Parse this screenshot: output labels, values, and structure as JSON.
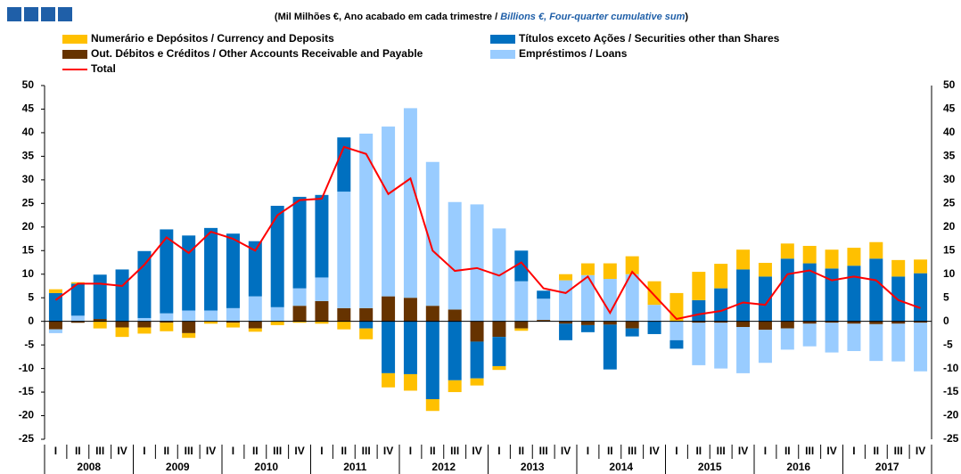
{
  "chart_data": {
    "type": "bar",
    "stacked": true,
    "subtitle_parts": [
      "(Mil Milhões €, Ano acabado em cada trimestre  / ",
      "Billions €, Four-quarter cumulative sum",
      ")"
    ],
    "categories": [
      "I",
      "II",
      "III",
      "IV",
      "I",
      "II",
      "III",
      "IV",
      "I",
      "II",
      "III",
      "IV",
      "I",
      "II",
      "III",
      "IV",
      "I",
      "II",
      "III",
      "IV",
      "I",
      "II",
      "III",
      "IV",
      "I",
      "II",
      "III",
      "IV",
      "I",
      "II",
      "III",
      "IV",
      "I",
      "II",
      "III",
      "IV",
      "I",
      "II",
      "III",
      "IV"
    ],
    "years": [
      "2008",
      "2009",
      "2010",
      "2011",
      "2012",
      "2013",
      "2014",
      "2015",
      "2016",
      "2017"
    ],
    "ylim": [
      -25,
      50
    ],
    "yticks": [
      -25,
      -20,
      -15,
      -10,
      -5,
      0,
      5,
      10,
      15,
      20,
      25,
      30,
      35,
      40,
      45,
      50
    ],
    "series": [
      {
        "name": "Out. Débitos e Créditos / Other Accounts Receivable and Payable",
        "color": "#663300",
        "type": "bar",
        "values": [
          -1.7,
          -0.3,
          0.5,
          -1.3,
          -1.3,
          -0.3,
          -2.5,
          0,
          -0.3,
          -1.5,
          0,
          3.3,
          4.3,
          2.8,
          2.8,
          5.3,
          5,
          3.3,
          2.5,
          -4.3,
          -3.3,
          -1.5,
          0.3,
          -0.5,
          -0.8,
          -0.7,
          -1.5,
          0,
          0,
          -0.3,
          -0.3,
          -1.2,
          -1.8,
          -1.5,
          -0.5,
          -0.3,
          -0.5,
          -0.6,
          -0.5,
          -0.3
        ]
      },
      {
        "name": "Empréstimos / Loans",
        "color": "#99ccff",
        "type": "bar",
        "values": [
          -0.8,
          1.2,
          0,
          0,
          0.7,
          1.7,
          2.3,
          2.3,
          2.8,
          5.3,
          3,
          3.7,
          5,
          24.7,
          37,
          36,
          40.2,
          30.5,
          22.8,
          24.8,
          19.7,
          8.5,
          4.5,
          8.7,
          9.8,
          9,
          10,
          3.5,
          -4,
          -9,
          -9.7,
          -9.8,
          -7,
          -4.5,
          -4.8,
          -6.3,
          -5.8,
          -7.8,
          -8,
          -10.3
        ]
      },
      {
        "name": "Títulos exceto Ações / Securities other than Shares",
        "color": "#0070c0",
        "type": "bar",
        "values": [
          6,
          6.8,
          9.4,
          11,
          14.2,
          17.8,
          15.9,
          17.5,
          15.8,
          11.7,
          21.5,
          19.4,
          17.5,
          11.5,
          -1.5,
          -11,
          -11.2,
          -16.5,
          -12.5,
          -7.8,
          -6.2,
          6.5,
          1.7,
          -3.5,
          -1.5,
          -9.5,
          -1.7,
          -2.7,
          -1.8,
          4.5,
          7,
          11,
          9.5,
          13.3,
          12.3,
          11.2,
          11.8,
          13.3,
          9.5,
          10.2
        ]
      },
      {
        "name": "Numerário e Depósitos / Currency and Deposits",
        "color": "#ffc000",
        "type": "bar",
        "values": [
          0.8,
          0.3,
          -1.5,
          -2,
          -1.3,
          -1.8,
          -1,
          -0.5,
          -1,
          -0.7,
          -0.8,
          -0.3,
          -0.5,
          -1.7,
          -2.3,
          -3,
          -3.5,
          -2.5,
          -2.5,
          -1.5,
          -0.8,
          -0.5,
          0,
          1.3,
          2.5,
          3.3,
          3.8,
          5,
          6,
          6,
          5.2,
          4.2,
          2.9,
          3.2,
          3.7,
          4,
          3.8,
          3.5,
          3.5,
          2.9
        ]
      },
      {
        "name": "Total",
        "color": "#ff0000",
        "type": "line",
        "values": [
          4.5,
          8,
          8,
          7.5,
          12,
          17.8,
          14.5,
          19,
          17.5,
          15,
          22.5,
          25.7,
          26,
          37,
          35.5,
          27,
          30.3,
          15,
          10.7,
          11.3,
          9.7,
          12.5,
          7,
          6,
          9.5,
          1.8,
          10.5,
          5.5,
          0.5,
          1.5,
          2.2,
          4,
          3.5,
          10,
          10.8,
          8.7,
          9.5,
          8.7,
          4.5,
          2.8
        ]
      }
    ]
  }
}
